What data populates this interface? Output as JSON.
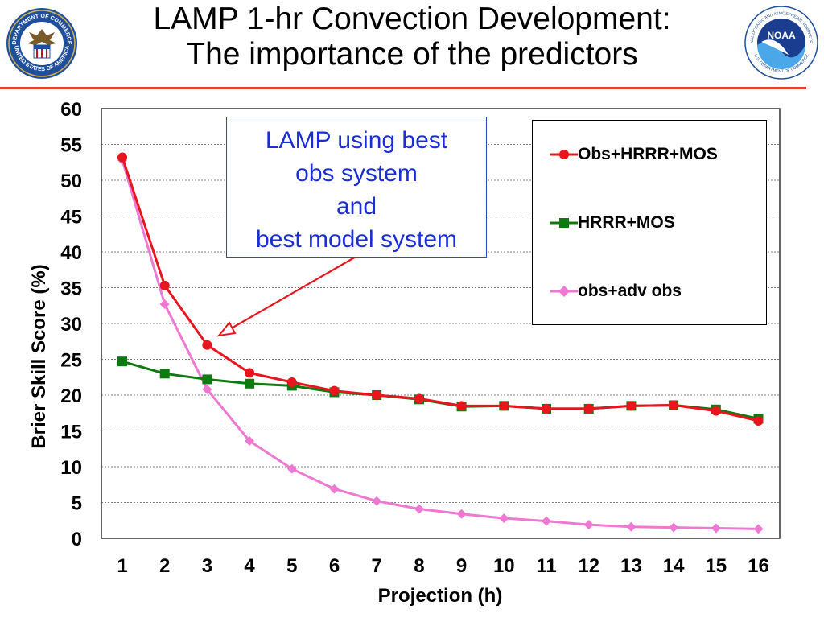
{
  "header": {
    "title_line1": "LAMP 1-hr Convection Development:",
    "title_line2": "The importance of the predictors",
    "left_seal_text_top": "DEPARTMENT OF COMMERCE",
    "left_seal_text_bottom": "UNITED STATES OF AMERICA",
    "right_seal_text_top": "NATIONAL OCEANIC AND ATMOSPHERIC ADMINISTRATION",
    "right_seal_text_bottom": "U.S. DEPARTMENT OF COMMERCE",
    "right_seal_center": "NOAA"
  },
  "callout": {
    "line1": "LAMP using best",
    "line2": "obs system",
    "line3": "and",
    "line4": "best model system"
  },
  "colors": {
    "accent_rule": "#e8402a",
    "series1": "#e8141e",
    "series2": "#0f7a0f",
    "series3": "#ee78d2",
    "callout_text": "#1a2ed6"
  },
  "chart_data": {
    "type": "line",
    "title": "",
    "xlabel": "Projection  (h)",
    "ylabel": "Brier Skill Score  (%)",
    "x": [
      1,
      2,
      3,
      4,
      5,
      6,
      7,
      8,
      9,
      10,
      11,
      12,
      13,
      14,
      15,
      16
    ],
    "xticks": [
      "1",
      "2",
      "3",
      "4",
      "5",
      "6",
      "7",
      "8",
      "9",
      "10",
      "11",
      "12",
      "13",
      "14",
      "15",
      "16"
    ],
    "yticks": [
      "0",
      "5",
      "10",
      "15",
      "20",
      "25",
      "30",
      "35",
      "40",
      "45",
      "50",
      "55",
      "60"
    ],
    "ylim": [
      0,
      60
    ],
    "grid": true,
    "legend_position": "top-right",
    "series": [
      {
        "name": "Obs+HRRR+MOS",
        "marker": "circle",
        "values": [
          53.2,
          35.3,
          27.0,
          23.1,
          21.8,
          20.6,
          20.0,
          19.5,
          18.5,
          18.5,
          18.1,
          18.1,
          18.5,
          18.6,
          17.8,
          16.4
        ]
      },
      {
        "name": "HRRR+MOS",
        "marker": "square",
        "values": [
          24.7,
          23.0,
          22.2,
          21.6,
          21.3,
          20.4,
          20.0,
          19.4,
          18.4,
          18.5,
          18.1,
          18.1,
          18.5,
          18.6,
          18.0,
          16.7
        ]
      },
      {
        "name": "obs+adv obs",
        "marker": "diamond",
        "values": [
          52.8,
          32.7,
          20.8,
          13.6,
          9.7,
          6.9,
          5.2,
          4.1,
          3.4,
          2.8,
          2.4,
          1.9,
          1.6,
          1.5,
          1.4,
          1.3
        ]
      }
    ]
  }
}
